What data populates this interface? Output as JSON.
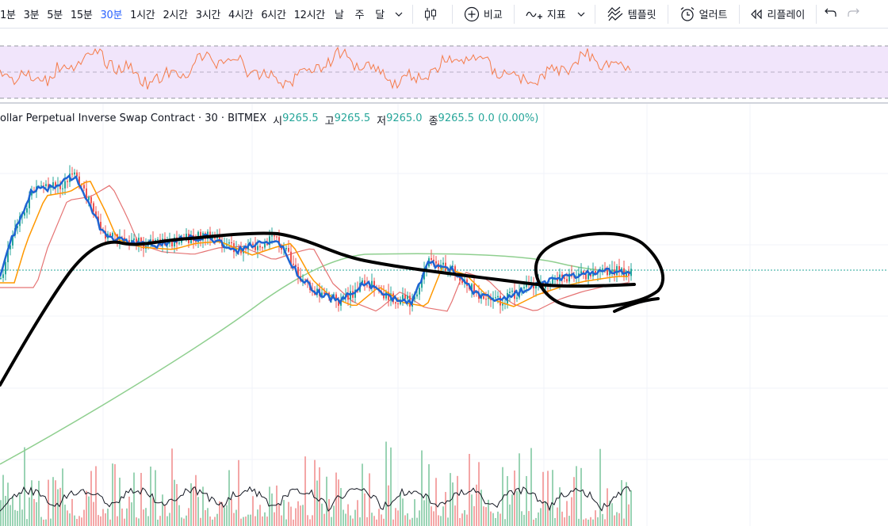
{
  "toolbar": {
    "intervals": [
      {
        "label": "1분",
        "active": false
      },
      {
        "label": "3분",
        "active": false
      },
      {
        "label": "5분",
        "active": false
      },
      {
        "label": "15분",
        "active": false
      },
      {
        "label": "30분",
        "active": true
      },
      {
        "label": "1시간",
        "active": false
      },
      {
        "label": "2시간",
        "active": false
      },
      {
        "label": "3시간",
        "active": false
      },
      {
        "label": "4시간",
        "active": false
      },
      {
        "label": "6시간",
        "active": false
      },
      {
        "label": "12시간",
        "active": false
      },
      {
        "label": "날",
        "active": false
      },
      {
        "label": "주",
        "active": false
      },
      {
        "label": "달",
        "active": false
      }
    ],
    "compare_label": "비교",
    "indicators_label": "지표",
    "templates_label": "템플릿",
    "alert_label": "얼러트",
    "replay_label": "리플레이",
    "icons": [
      "chevron-down-icon",
      "candlestick-icon",
      "plus-circle-icon",
      "indicator-icon",
      "template-icon",
      "alarm-clock-icon",
      "replay-icon",
      "undo-icon",
      "redo-icon"
    ]
  },
  "legend": {
    "symbol": "ollar Perpetual Inverse Swap Contract · 30 · BITMEX",
    "open_label": "시",
    "open_value": "9265.5",
    "high_label": "고",
    "high_value": "9265.5",
    "low_label": "저",
    "low_value": "9265.0",
    "close_label": "종",
    "close_value": "9265.5",
    "change": "0.0 (0.00%)"
  },
  "colors": {
    "up": "#26a69a",
    "down": "#ef5350",
    "rsi_line": "#f57c4a",
    "rsi_band": "#f1e5fb",
    "ma_fast": "#1e64d2",
    "ma_mid": "#ff9800",
    "ma_slow": "#e57373",
    "ma_long": "#8fcf8f",
    "accent": "#2962ff"
  }
}
